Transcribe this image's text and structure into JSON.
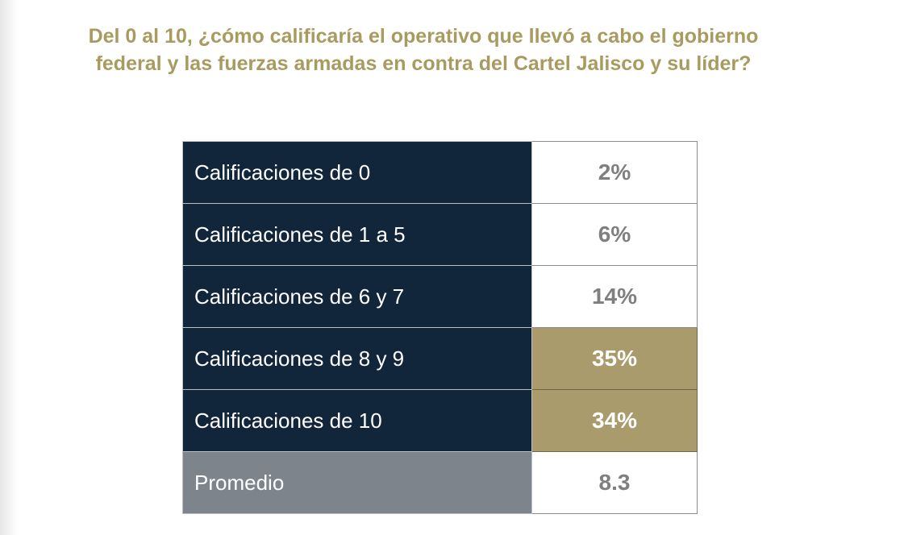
{
  "title_lines": [
    "Del 0 al 10, ¿cómo calificaría el operativo que llevó a cabo el gobierno",
    "federal y las fuerzas armadas en contra del Cartel Jalisco y su líder?"
  ],
  "colors": {
    "title": "#a99b5f",
    "label_bg": "#11263b",
    "highlight_bg": "#a99b6b",
    "average_bg": "#7d848b"
  },
  "chart_data": {
    "type": "table",
    "title": "Del 0 al 10, ¿cómo calificaría el operativo que llevó a cabo el gobierno federal y las fuerzas armadas en contra del Cartel Jalisco y su líder?",
    "rows": [
      {
        "label": "Calificaciones de 0",
        "value": "2%",
        "highlight": false
      },
      {
        "label": "Calificaciones de 1 a 5",
        "value": "6%",
        "highlight": false
      },
      {
        "label": "Calificaciones de 6 y 7",
        "value": "14%",
        "highlight": false
      },
      {
        "label": "Calificaciones de 8 y 9",
        "value": "35%",
        "highlight": true
      },
      {
        "label": "Calificaciones de 10",
        "value": "34%",
        "highlight": true
      },
      {
        "label": "Promedio",
        "value": "8.3",
        "highlight": false
      }
    ]
  }
}
